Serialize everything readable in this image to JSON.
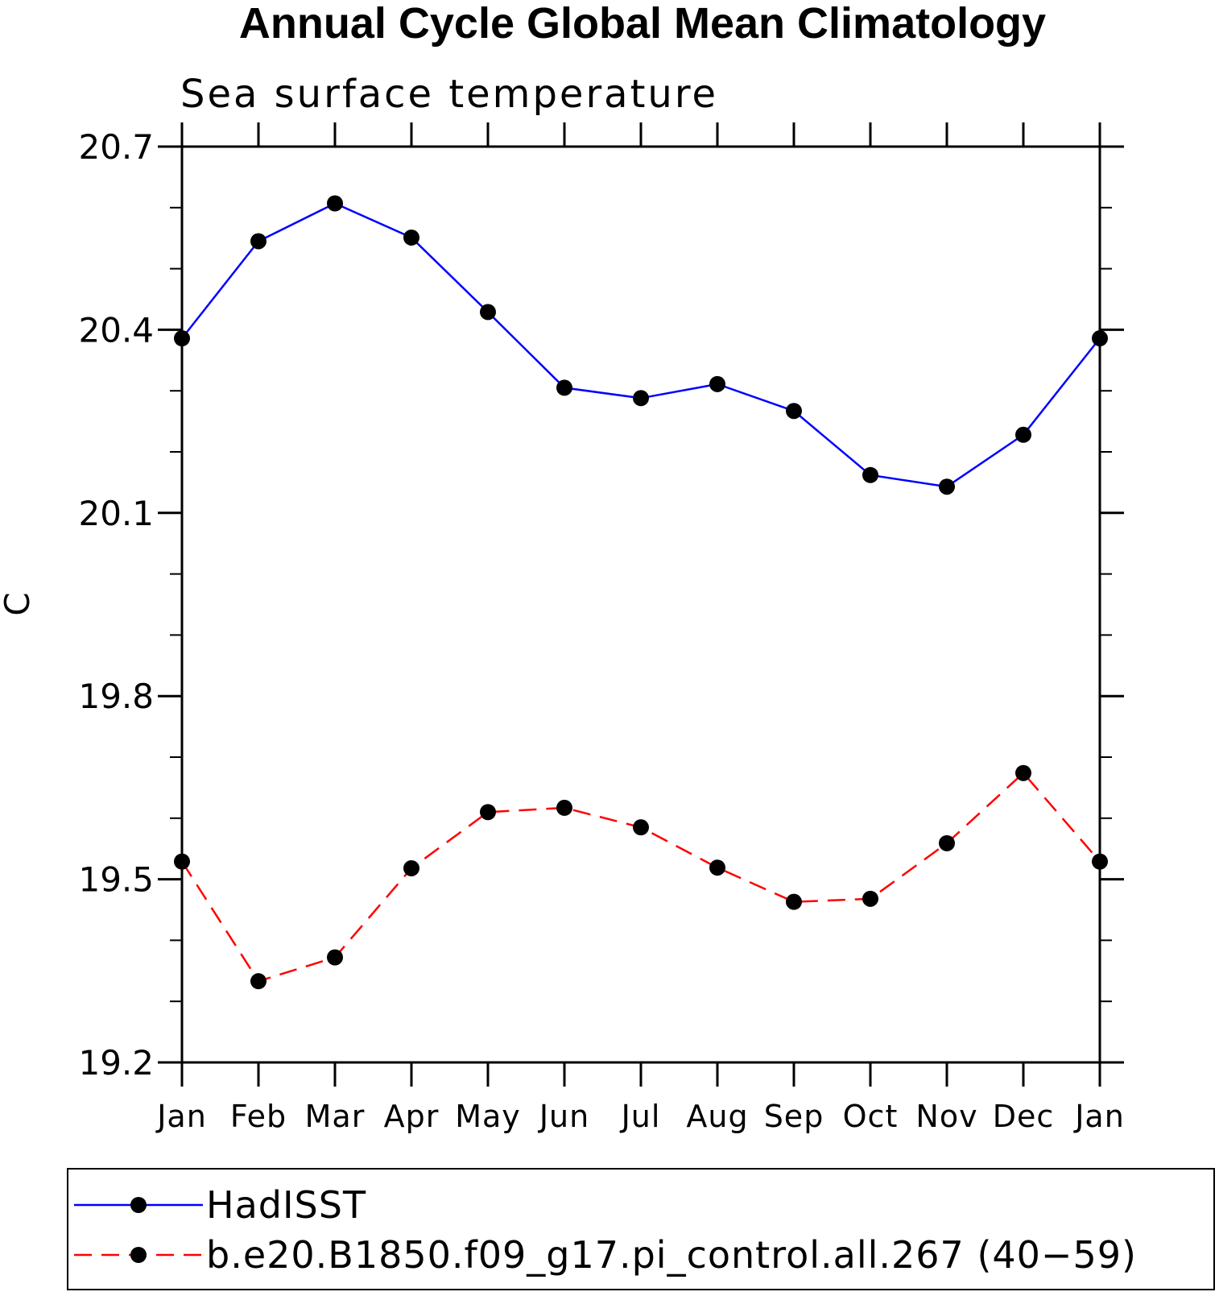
{
  "chart_data": {
    "type": "line",
    "title": "Annual Cycle Global Mean Climatology",
    "subtitle": "Sea surface temperature",
    "ylabel": "C",
    "xlabel": "",
    "categories": [
      "Jan",
      "Feb",
      "Mar",
      "Apr",
      "May",
      "Jun",
      "Jul",
      "Aug",
      "Sep",
      "Oct",
      "Nov",
      "Dec",
      "Jan"
    ],
    "ylim": [
      19.2,
      20.7
    ],
    "yticks": [
      "19.2",
      "19.5",
      "19.8",
      "20.1",
      "20.4",
      "20.7"
    ],
    "y_minor_step": 0.1,
    "grid": false,
    "legend_position": "bottom",
    "series": [
      {
        "name": "HadISST",
        "color": "#0000ff",
        "dash": "solid",
        "marker": "filled-circle",
        "values": [
          20.386,
          20.545,
          20.607,
          20.551,
          20.429,
          20.305,
          20.288,
          20.311,
          20.267,
          20.162,
          20.143,
          20.228,
          20.386
        ]
      },
      {
        "name": "b.e20.B1850.f09_g17.pi_control.all.267 (40−59)",
        "color": "#ff0000",
        "dash": "dashed",
        "marker": "filled-circle",
        "values": [
          19.529,
          19.333,
          19.372,
          19.518,
          19.61,
          19.617,
          19.585,
          19.519,
          19.463,
          19.468,
          19.559,
          19.674,
          19.529
        ]
      }
    ]
  }
}
